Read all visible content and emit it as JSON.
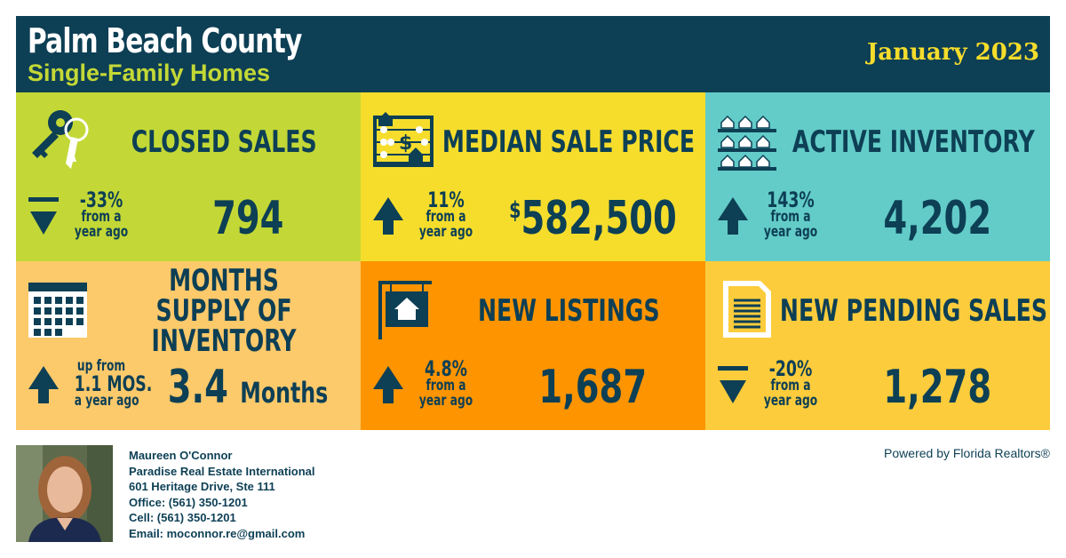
{
  "header": {
    "title": "Palm Beach County",
    "subtitle": "Single-Family Homes",
    "date": "January 2023"
  },
  "colors": {
    "navy": "#0d3f55",
    "lime": "#c3d836",
    "yellow": "#f6dd2c",
    "teal": "#63ccc8",
    "peach": "#fcc96b",
    "orange": "#fd9400",
    "gold": "#fccc3c"
  },
  "tiles": [
    {
      "label": "CLOSED SALES",
      "icon": "keys-icon",
      "direction": "down",
      "pct": "-33%",
      "line1": "from a",
      "line2": "year ago",
      "value": "794",
      "color": "#c3d836"
    },
    {
      "label": "MEDIAN SALE PRICE",
      "icon": "abacus-icon",
      "direction": "up",
      "pct": "11%",
      "line1": "from a",
      "line2": "year ago",
      "value_prefix": "$",
      "value": "582,500",
      "color": "#f6dd2c"
    },
    {
      "label": "ACTIVE INVENTORY",
      "icon": "house-shelves-icon",
      "direction": "up",
      "pct": "143%",
      "line1": "from a",
      "line2": "year ago",
      "value": "4,202",
      "color": "#63ccc8"
    },
    {
      "label": "MONTHS SUPPLY OF INVENTORY",
      "icon": "calendar-icon",
      "direction": "up",
      "pct": "up from",
      "line1": "1.1 MOS.",
      "line2": "a year ago",
      "value": "3.4",
      "value_unit": "Months",
      "color": "#fcc96b"
    },
    {
      "label": "NEW LISTINGS",
      "icon": "house-sign-icon",
      "direction": "up",
      "pct": "4.8%",
      "line1": "from a",
      "line2": "year ago",
      "value": "1,687",
      "color": "#fd9400"
    },
    {
      "label": "NEW PENDING SALES",
      "icon": "document-icon",
      "direction": "down",
      "pct": "-20%",
      "line1": "from a",
      "line2": "year ago",
      "value": "1,278",
      "color": "#fccc3c"
    }
  ],
  "agent": {
    "name": "Maureen O'Connor",
    "company": "Paradise Real Estate International",
    "address": "601 Heritage Drive, Ste 111",
    "office": "Office: (561) 350-1201",
    "cell": "Cell: (561) 350-1201",
    "email": "Email: moconnor.re@gmail.com"
  },
  "powered_by": "Powered by Florida Realtors®"
}
